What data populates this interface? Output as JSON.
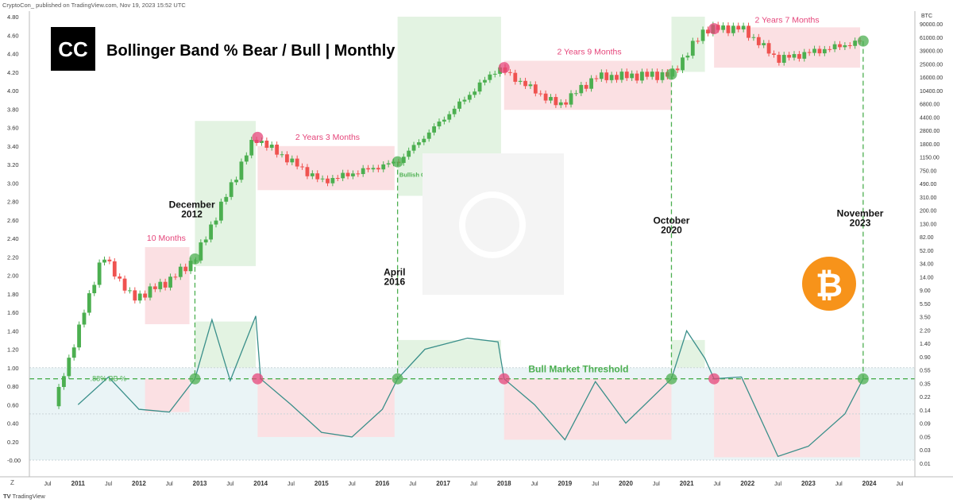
{
  "header_text": "CryptoCon_ published on TradingView.com, Nov 19, 2023 15:52 UTC",
  "footer_text": "TradingView",
  "footer_logo": "TV",
  "logo_glyph": "CC",
  "bitcoin_glyph": "₿",
  "colors": {
    "bull": "#4caf50",
    "bear": "#ef5350",
    "line": "#3a8f8a",
    "bullZone": "#e3f3e2",
    "bearZone": "#fbe0e3",
    "band": "#eaf4f6",
    "bearText": "#e5457a",
    "bullText": "#4caf50",
    "btc": "#f7931a"
  },
  "chart_data": {
    "type": "candlestick+line",
    "title": "Bollinger Band % Bear / Bull | Monthly",
    "left_axis": {
      "label": "",
      "ticks": [
        "4.80",
        "4.60",
        "4.40",
        "4.20",
        "4.00",
        "3.80",
        "3.60",
        "3.40",
        "3.20",
        "3.00",
        "2.80",
        "2.60",
        "2.40",
        "2.20",
        "2.00",
        "1.80",
        "1.60",
        "1.40",
        "1.20",
        "1.00",
        "0.80",
        "0.60",
        "0.40",
        "0.20",
        "-0.00"
      ]
    },
    "right_axis": {
      "label": "BTC",
      "ticks": [
        "90000.00",
        "61000.00",
        "39000.00",
        "25000.00",
        "16000.00",
        "10400.00",
        "6800.00",
        "4400.00",
        "2800.00",
        "1800.00",
        "1150.00",
        "750.00",
        "490.00",
        "310.00",
        "200.00",
        "130.00",
        "82.00",
        "52.00",
        "34.00",
        "14.00",
        "9.00",
        "5.50",
        "3.50",
        "2.20",
        "1.40",
        "0.90",
        "0.55",
        "0.35",
        "0.22",
        "0.14",
        "0.09",
        "0.05",
        "0.03",
        "0.01"
      ]
    },
    "x_axis": {
      "ticks": [
        "Jul",
        "2011",
        "Jul",
        "2012",
        "Jul",
        "2013",
        "Jul",
        "2014",
        "Jul",
        "2015",
        "Jul",
        "2016",
        "Jul",
        "2017",
        "Jul",
        "2018",
        "Jul",
        "2019",
        "Jul",
        "2020",
        "Jul",
        "2021",
        "Jul",
        "2022",
        "Jul",
        "2023",
        "Jul",
        "2024",
        "Jul"
      ]
    },
    "threshold": {
      "label": "Bull Market Threshold",
      "value": 0.88,
      "axis_label": ".88% BB %"
    },
    "cycles": [
      {
        "bear_label": "10 Months",
        "bull_signal": "December 2012",
        "signal_line1": "December",
        "signal_line2": "2012"
      },
      {
        "bear_label": "2 Years 3 Months",
        "bull_signal": "April 2016",
        "signal_line1": "April",
        "signal_line2": "2016",
        "note": "Bullish Cross"
      },
      {
        "bear_label": "2 Years 9 Months",
        "bull_signal": "October 2020",
        "signal_line1": "October",
        "signal_line2": "2020"
      },
      {
        "bear_label": "2 Years 7 Months",
        "bull_signal": "November 2023",
        "signal_line1": "November",
        "signal_line2": "2023"
      }
    ],
    "bb_percent_series": [
      {
        "x": 2011.0,
        "y": 0.6
      },
      {
        "x": 2011.5,
        "y": 0.9
      },
      {
        "x": 2012.0,
        "y": 0.55
      },
      {
        "x": 2012.5,
        "y": 0.52
      },
      {
        "x": 2012.92,
        "y": 0.88
      },
      {
        "x": 2013.2,
        "y": 1.52
      },
      {
        "x": 2013.5,
        "y": 0.86
      },
      {
        "x": 2013.92,
        "y": 1.56
      },
      {
        "x": 2014.0,
        "y": 0.88
      },
      {
        "x": 2014.5,
        "y": 0.6
      },
      {
        "x": 2015.0,
        "y": 0.3
      },
      {
        "x": 2015.5,
        "y": 0.25
      },
      {
        "x": 2016.0,
        "y": 0.55
      },
      {
        "x": 2016.25,
        "y": 0.88
      },
      {
        "x": 2016.7,
        "y": 1.2
      },
      {
        "x": 2017.4,
        "y": 1.32
      },
      {
        "x": 2017.9,
        "y": 1.28
      },
      {
        "x": 2018.0,
        "y": 0.88
      },
      {
        "x": 2018.5,
        "y": 0.6
      },
      {
        "x": 2019.0,
        "y": 0.22
      },
      {
        "x": 2019.5,
        "y": 0.85
      },
      {
        "x": 2020.0,
        "y": 0.4
      },
      {
        "x": 2020.75,
        "y": 0.88
      },
      {
        "x": 2021.0,
        "y": 1.4
      },
      {
        "x": 2021.3,
        "y": 1.1
      },
      {
        "x": 2021.45,
        "y": 0.88
      },
      {
        "x": 2021.9,
        "y": 0.9
      },
      {
        "x": 2022.5,
        "y": 0.04
      },
      {
        "x": 2023.0,
        "y": 0.15
      },
      {
        "x": 2023.6,
        "y": 0.5
      },
      {
        "x": 2023.9,
        "y": 0.88
      }
    ],
    "price_path_log": [
      {
        "x": 2010.6,
        "p": 0.06
      },
      {
        "x": 2011.4,
        "p": 15
      },
      {
        "x": 2011.9,
        "p": 3
      },
      {
        "x": 2012.5,
        "p": 6
      },
      {
        "x": 2012.92,
        "p": 13
      },
      {
        "x": 2013.9,
        "p": 1100
      },
      {
        "x": 2015.0,
        "p": 220
      },
      {
        "x": 2016.25,
        "p": 450
      },
      {
        "x": 2017.9,
        "p": 14000
      },
      {
        "x": 2018.9,
        "p": 3500
      },
      {
        "x": 2019.5,
        "p": 10000
      },
      {
        "x": 2020.75,
        "p": 11000
      },
      {
        "x": 2021.3,
        "p": 58000
      },
      {
        "x": 2021.9,
        "p": 60000
      },
      {
        "x": 2022.5,
        "p": 19000
      },
      {
        "x": 2023.9,
        "p": 37000
      }
    ]
  }
}
